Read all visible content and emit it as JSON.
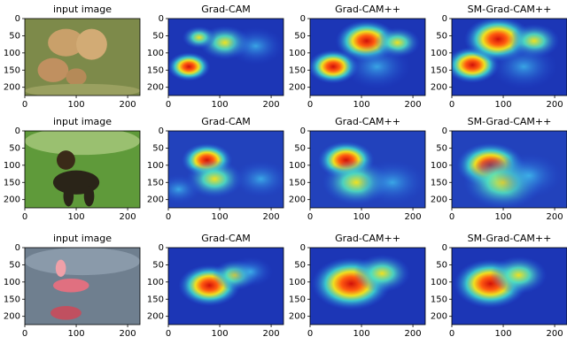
{
  "rows": [
    {
      "panels": [
        {
          "title": "input image"
        },
        {
          "title": "Grad-CAM"
        },
        {
          "title": "Grad-CAM++"
        },
        {
          "title": "SM-Grad-CAM++"
        }
      ]
    },
    {
      "panels": [
        {
          "title": "input image"
        },
        {
          "title": "Grad-CAM"
        },
        {
          "title": "Grad-CAM++"
        },
        {
          "title": "SM-Grad-CAM++"
        }
      ]
    },
    {
      "panels": [
        {
          "title": "input image"
        },
        {
          "title": "Grad-CAM"
        },
        {
          "title": "Grad-CAM++"
        },
        {
          "title": "SM-Grad-CAM++"
        }
      ]
    }
  ],
  "axes": {
    "xlim": [
      0,
      224
    ],
    "ylim": [
      0,
      224
    ],
    "xticks": [
      0,
      100,
      200
    ],
    "yticks": [
      0,
      50,
      100,
      150,
      200
    ]
  }
}
